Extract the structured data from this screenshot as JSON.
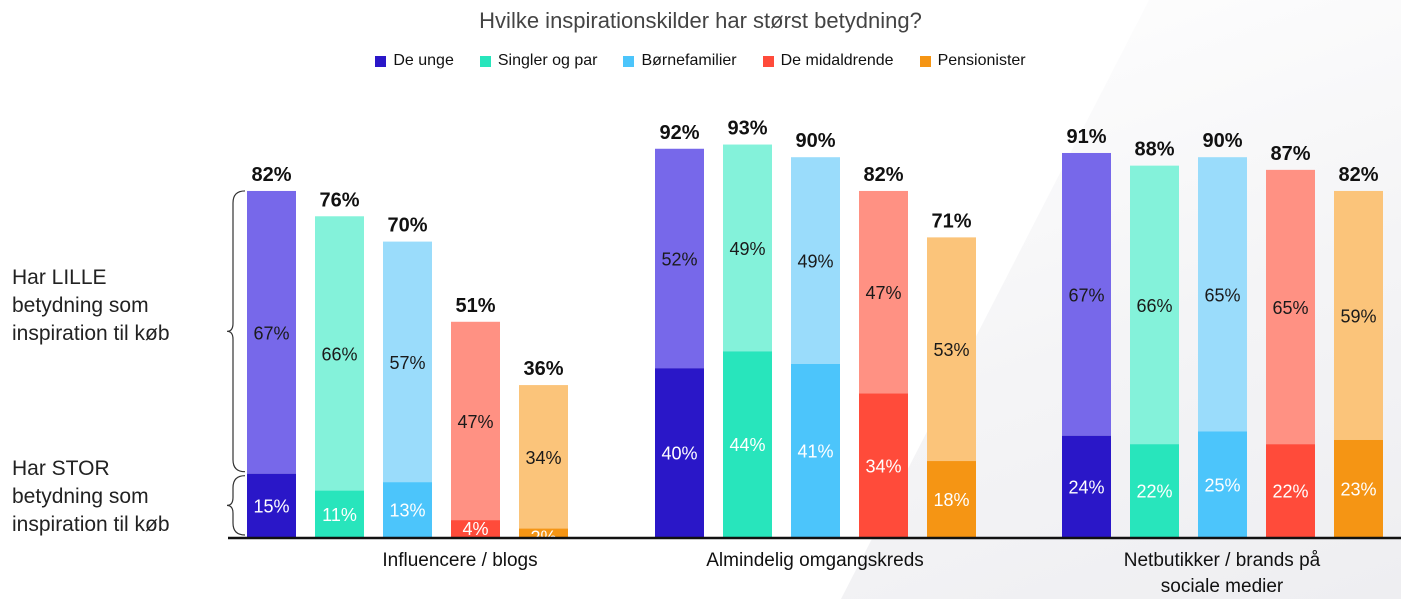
{
  "chart_data": {
    "type": "bar",
    "stacked": true,
    "title": "Hvilke inspirationskilder har størst betydning?",
    "categories": [
      "Influencere / blogs",
      "Almindelig omgangskreds",
      "Netbutikker / brands på sociale medier"
    ],
    "legend": [
      "De unge",
      "Singler og par",
      "Børnefamilier",
      "De midaldrende",
      "Pensionister"
    ],
    "legend_position": "top-center",
    "grid": false,
    "ylim": [
      0,
      100
    ],
    "segments": [
      "Har STOR betydning som inspiration til køb",
      "Har LILLE betydning som inspiration til køb"
    ],
    "series": [
      {
        "name": "De unge",
        "stor": [
          15,
          40,
          24
        ],
        "lille": [
          67,
          52,
          67
        ],
        "total": [
          82,
          92,
          91
        ]
      },
      {
        "name": "Singler og par",
        "stor": [
          11,
          44,
          22
        ],
        "lille": [
          66,
          49,
          66
        ],
        "total": [
          76,
          93,
          88
        ]
      },
      {
        "name": "Børnefamilier",
        "stor": [
          13,
          41,
          25
        ],
        "lille": [
          57,
          49,
          65
        ],
        "total": [
          70,
          90,
          90
        ]
      },
      {
        "name": "De midaldrende",
        "stor": [
          4,
          34,
          22
        ],
        "lille": [
          47,
          47,
          65
        ],
        "total": [
          51,
          82,
          87
        ]
      },
      {
        "name": "Pensionister",
        "stor": [
          2,
          18,
          23
        ],
        "lille": [
          34,
          53,
          59
        ],
        "total": [
          36,
          71,
          82
        ]
      }
    ]
  },
  "colors": {
    "De unge": {
      "dark": "#2a17c8",
      "light": "#7768ea"
    },
    "Singler og par": {
      "dark": "#28e5bc",
      "light": "#84f2da"
    },
    "Børnefamilier": {
      "dark": "#4cc5fb",
      "light": "#9adcfb"
    },
    "De midaldrende": {
      "dark": "#ff4b3a",
      "light": "#ff9183"
    },
    "Pensionister": {
      "dark": "#f59514",
      "light": "#fbc47a"
    }
  },
  "side_labels": {
    "lille": "Har LILLE betydning som inspiration til køb",
    "stor": "Har STOR betydning som inspiration til køb"
  },
  "side_label_lines": {
    "lille": [
      "Har LILLE",
      "betydning som",
      "inspiration til køb"
    ],
    "stor": [
      "Har STOR",
      "betydning som",
      "inspiration til køb"
    ]
  },
  "group_label_lines": [
    [
      "Influencere / blogs"
    ],
    [
      "Almindelig omgangskreds"
    ],
    [
      "Netbutikker / brands på",
      "sociale medier"
    ]
  ]
}
